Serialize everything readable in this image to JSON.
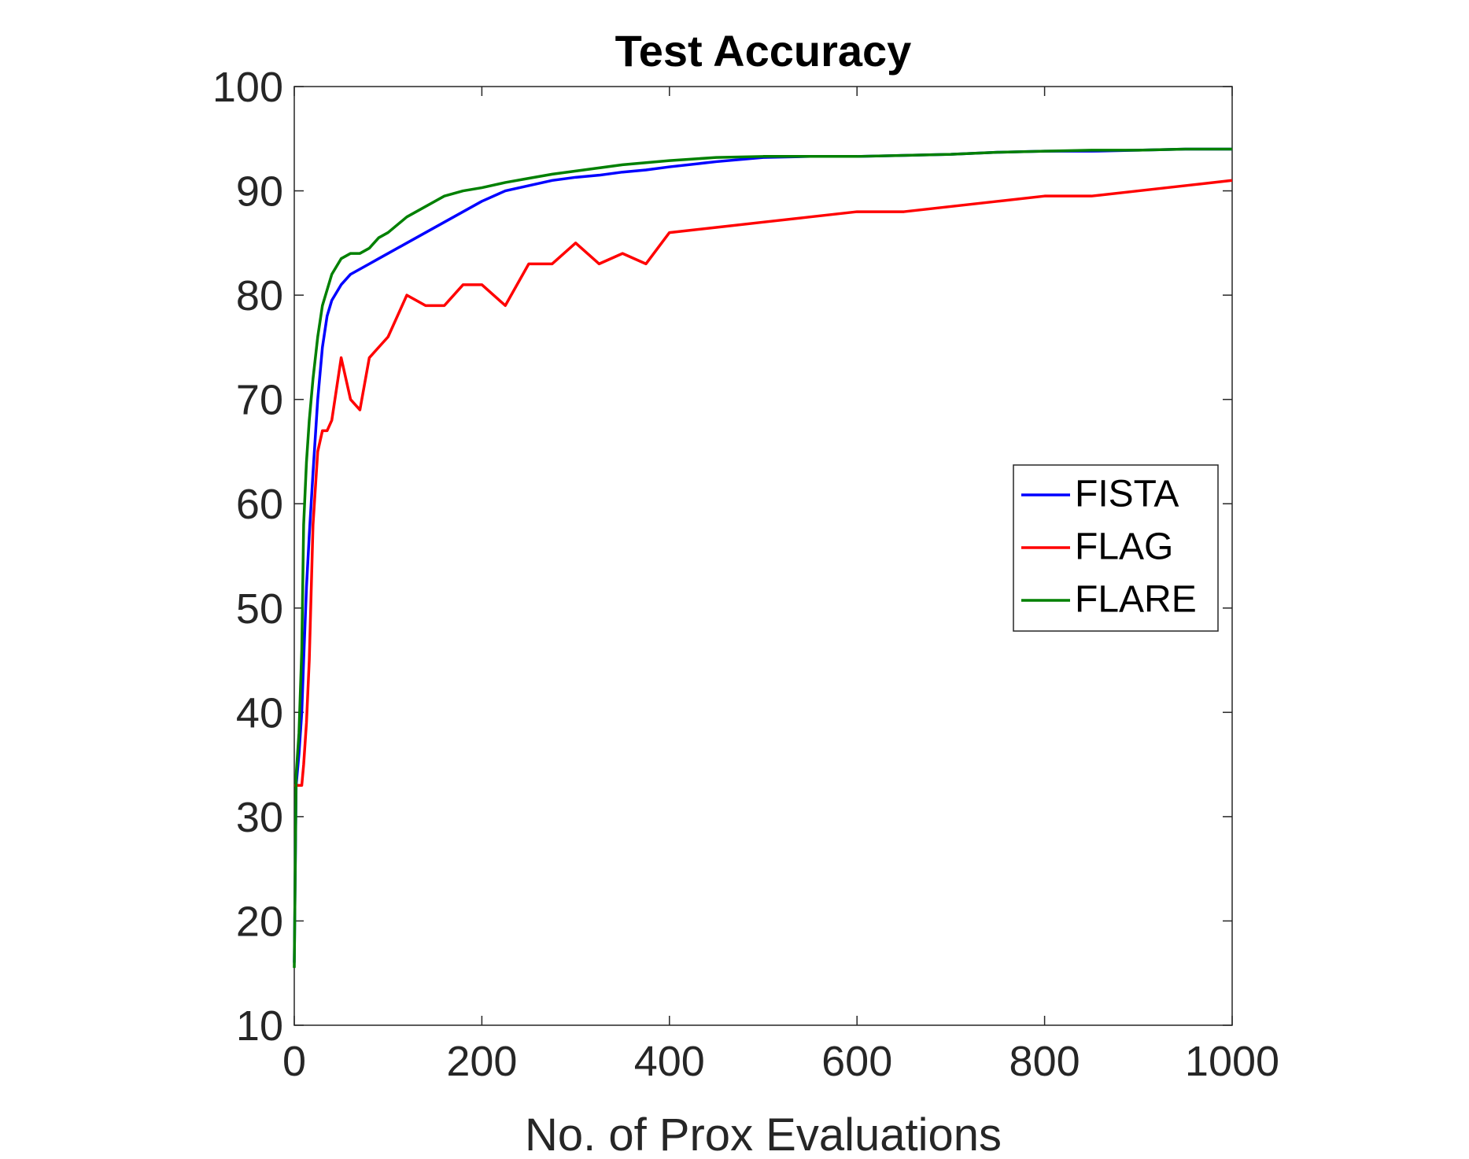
{
  "chart_data": {
    "type": "line",
    "title": "Test Accuracy",
    "x_label": "No. of Prox Evaluations",
    "x": [
      0,
      2,
      5,
      8,
      10,
      13,
      16,
      20,
      25,
      30,
      35,
      40,
      50,
      60,
      70,
      80,
      90,
      100,
      120,
      140,
      160,
      180,
      200,
      225,
      250,
      275,
      300,
      325,
      350,
      375,
      400,
      450,
      500,
      550,
      600,
      650,
      700,
      750,
      800,
      850,
      900,
      950,
      1000
    ],
    "series": [
      {
        "name": "FISTA",
        "color": "#0000ff",
        "values": [
          16,
          33,
          36,
          40,
          45,
          52,
          57,
          63,
          70,
          75,
          78,
          79.5,
          81,
          82,
          82.5,
          83,
          83.5,
          84,
          85,
          86,
          87,
          88,
          89,
          90,
          90.5,
          91,
          91.3,
          91.5,
          91.8,
          92,
          92.3,
          92.8,
          93.2,
          93.3,
          93.3,
          93.4,
          93.5,
          93.7,
          93.8,
          93.8,
          93.9,
          94,
          94
        ]
      },
      {
        "name": "FLAG",
        "color": "#ff0000",
        "values": [
          33,
          33,
          33,
          33,
          35,
          39,
          45,
          58,
          65,
          67,
          67,
          68,
          74,
          70,
          69,
          74,
          75,
          76,
          80,
          79,
          79,
          81,
          81,
          79,
          83,
          83,
          85,
          83,
          84,
          83,
          86,
          86.5,
          87,
          87.5,
          88,
          88,
          88.5,
          89,
          89.5,
          89.5,
          90,
          90.5,
          91
        ]
      },
      {
        "name": "FLARE",
        "color": "#008000",
        "values": [
          15.5,
          34,
          38,
          46,
          58,
          64,
          68,
          72,
          76,
          79,
          80.5,
          82,
          83.5,
          84,
          84,
          84.5,
          85.5,
          86,
          87.5,
          88.5,
          89.5,
          90,
          90.3,
          90.8,
          91.2,
          91.6,
          91.9,
          92.2,
          92.5,
          92.7,
          92.9,
          93.2,
          93.3,
          93.3,
          93.3,
          93.4,
          93.5,
          93.7,
          93.8,
          93.9,
          93.9,
          94,
          94
        ]
      }
    ],
    "xlim": [
      0,
      1000
    ],
    "xticks": [
      0,
      200,
      400,
      600,
      800,
      1000
    ],
    "ylim": [
      10,
      100
    ],
    "yticks": [
      10,
      20,
      30,
      40,
      50,
      60,
      70,
      80,
      90,
      100
    ],
    "legend": "east"
  }
}
